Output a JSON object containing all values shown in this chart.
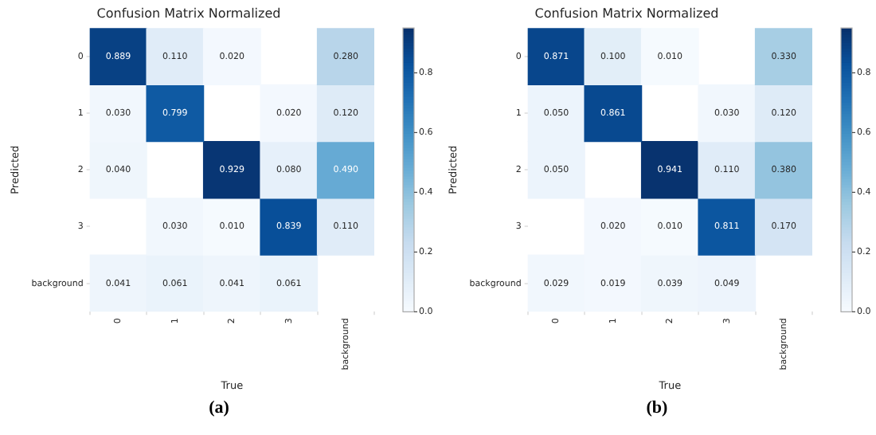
{
  "chart_data": [
    {
      "type": "heatmap",
      "title": "Confusion Matrix Normalized",
      "xlabel": "True",
      "ylabel": "Predicted",
      "categories": [
        "0",
        "1",
        "2",
        "3",
        "background"
      ],
      "y_categories": [
        "0",
        "1",
        "2",
        "3",
        "background"
      ],
      "cells": [
        [
          0.889,
          0.11,
          0.02,
          null,
          0.28
        ],
        [
          0.03,
          0.799,
          null,
          0.02,
          0.12
        ],
        [
          0.04,
          null,
          0.929,
          0.08,
          0.49
        ],
        [
          null,
          0.03,
          0.01,
          0.839,
          0.11
        ],
        [
          0.041,
          0.061,
          0.041,
          0.061,
          null
        ]
      ],
      "cell_labels": [
        [
          "0.889",
          "0.110",
          "0.020",
          null,
          "0.280"
        ],
        [
          "0.030",
          "0.799",
          null,
          "0.020",
          "0.120"
        ],
        [
          "0.040",
          null,
          "0.929",
          "0.080",
          "0.490"
        ],
        [
          null,
          "0.030",
          "0.010",
          "0.839",
          "0.110"
        ],
        [
          "0.041",
          "0.061",
          "0.041",
          "0.061",
          null
        ]
      ],
      "clim": [
        0,
        0.95
      ],
      "cticks": [
        {
          "value": 0,
          "label": "0.0"
        },
        {
          "value": 0.2,
          "label": "0.2"
        },
        {
          "value": 0.4,
          "label": "0.4"
        },
        {
          "value": 0.6,
          "label": "0.6"
        },
        {
          "value": 0.8,
          "label": "0.8"
        }
      ],
      "annotations": [
        "(a)"
      ]
    },
    {
      "type": "heatmap",
      "title": "Confusion Matrix Normalized",
      "xlabel": "True",
      "ylabel": "Predicted",
      "categories": [
        "0",
        "1",
        "2",
        "3",
        "background"
      ],
      "y_categories": [
        "0",
        "1",
        "2",
        "3",
        "background"
      ],
      "cells": [
        [
          0.871,
          0.1,
          0.01,
          null,
          0.33
        ],
        [
          0.05,
          0.861,
          null,
          0.03,
          0.12
        ],
        [
          0.05,
          null,
          0.941,
          0.11,
          0.38
        ],
        [
          null,
          0.02,
          0.01,
          0.811,
          0.17
        ],
        [
          0.029,
          0.019,
          0.039,
          0.049,
          null
        ]
      ],
      "cell_labels": [
        [
          "0.871",
          "0.100",
          "0.010",
          null,
          "0.330"
        ],
        [
          "0.050",
          "0.861",
          null,
          "0.030",
          "0.120"
        ],
        [
          "0.050",
          null,
          "0.941",
          "0.110",
          "0.380"
        ],
        [
          null,
          "0.020",
          "0.010",
          "0.811",
          "0.170"
        ],
        [
          "0.029",
          "0.019",
          "0.039",
          "0.049",
          null
        ]
      ],
      "clim": [
        0,
        0.95
      ],
      "cticks": [
        {
          "value": 0,
          "label": "0.0"
        },
        {
          "value": 0.2,
          "label": "0.2"
        },
        {
          "value": 0.4,
          "label": "0.4"
        },
        {
          "value": 0.6,
          "label": "0.6"
        },
        {
          "value": 0.8,
          "label": "0.8"
        }
      ],
      "annotations": [
        "(b)"
      ]
    }
  ]
}
